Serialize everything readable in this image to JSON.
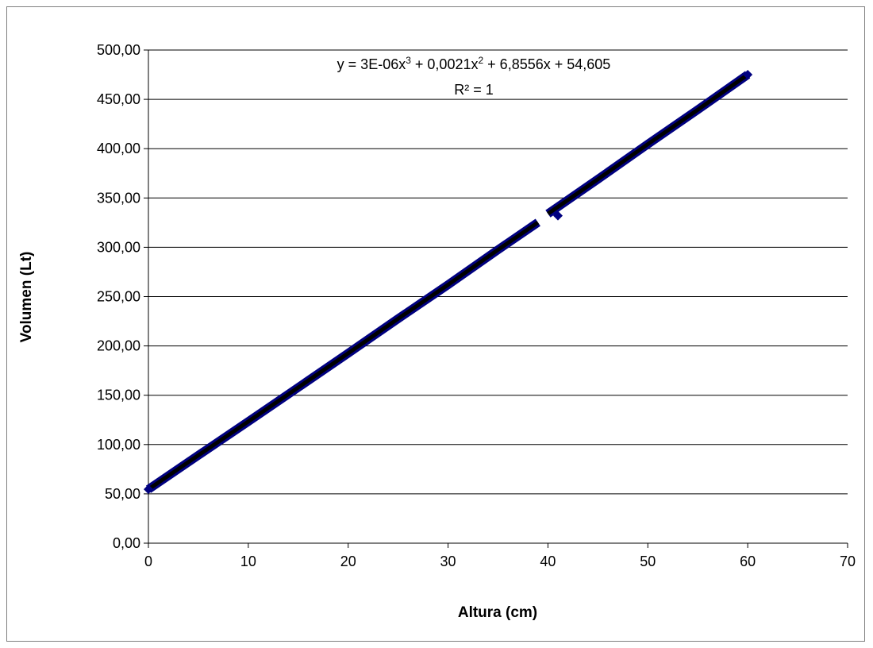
{
  "chart_data": {
    "type": "scatter",
    "xlabel": "Altura (cm)",
    "ylabel": "Volumen (Lt)",
    "xlim": [
      0,
      70
    ],
    "ylim": [
      0,
      500
    ],
    "x_ticks": [
      "0",
      "10",
      "20",
      "30",
      "40",
      "50",
      "60",
      "70"
    ],
    "y_ticks": [
      "0,00",
      "50,00",
      "100,00",
      "150,00",
      "200,00",
      "250,00",
      "300,00",
      "350,00",
      "400,00",
      "450,00",
      "500,00"
    ],
    "grid": "horizontal",
    "legend": "none",
    "series": [
      {
        "segments": [
          {
            "x": [
              0,
              5,
              10,
              15,
              20,
              25,
              30,
              35,
              39
            ],
            "y": [
              54.6,
              89.1,
              123.3,
              157.9,
              192.6,
              227.6,
              262.0,
              297.5,
              325.2
            ]
          },
          {
            "x": [
              40,
              45,
              50,
              55,
              60
            ],
            "y": [
              334.0,
              369.0,
              404.6,
              439.5,
              475.0
            ]
          }
        ],
        "marker_points": [
          {
            "x": 0,
            "y": 54.6
          },
          {
            "x": 41,
            "y": 332.0
          },
          {
            "x": 60,
            "y": 475.0
          }
        ],
        "color": "#000080",
        "trend_color": "#000000"
      }
    ],
    "annotations": {
      "equation_prefix": "y = 3E-06x",
      "equation_sup1": "3",
      "equation_mid": " + 0,0021x",
      "equation_sup2": "2",
      "equation_suffix": " + 6,8556x + 54,605",
      "r_squared": "R² = 1"
    }
  }
}
